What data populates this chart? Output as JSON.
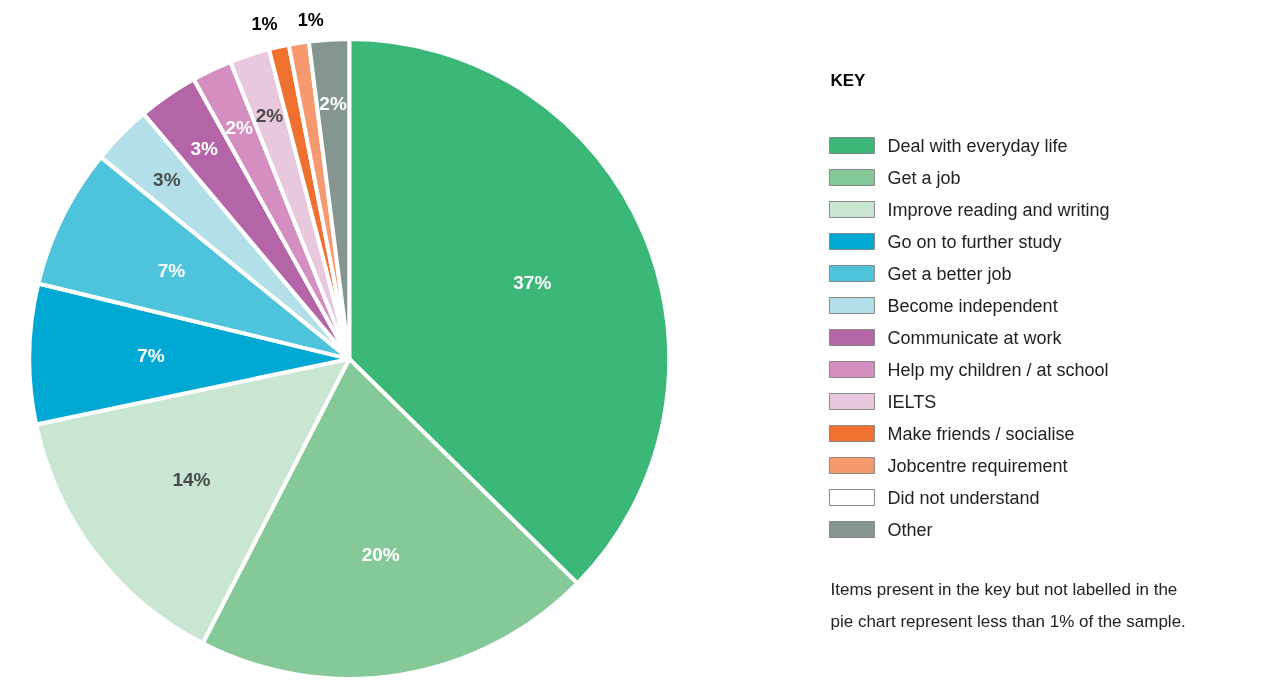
{
  "chart_data": {
    "type": "pie",
    "legend_title": "KEY",
    "legend": "right",
    "categories": [
      "Deal with everyday life",
      "Get a job",
      "Improve reading and writing",
      "Go on to further study",
      "Get a better job",
      "Become independent",
      "Communicate at work",
      "Help my children / at school",
      "IELTS",
      "Make friends / socialise",
      "Jobcentre requirement",
      "Did not understand",
      "Other"
    ],
    "values": [
      37,
      20,
      14,
      7,
      7,
      3,
      3,
      2,
      2,
      1,
      1,
      0,
      2
    ],
    "value_labels": [
      "37%",
      "20%",
      "14%",
      "7%",
      "7%",
      "3%",
      "3%",
      "2%",
      "2%",
      "1%",
      "1%",
      null,
      "2%"
    ],
    "colors": [
      "#3bb878",
      "#86c998",
      "#c8e6d2",
      "#00a9d4",
      "#4ec4dc",
      "#b3e0e8",
      "#b365a8",
      "#d48fc0",
      "#e8c8dc",
      "#f07030",
      "#f7996e",
      "#ffffff",
      "#84968f"
    ],
    "annotations": [
      "Items present in the key but not labelled in the\npie chart represent less than 1% of the sample."
    ]
  }
}
